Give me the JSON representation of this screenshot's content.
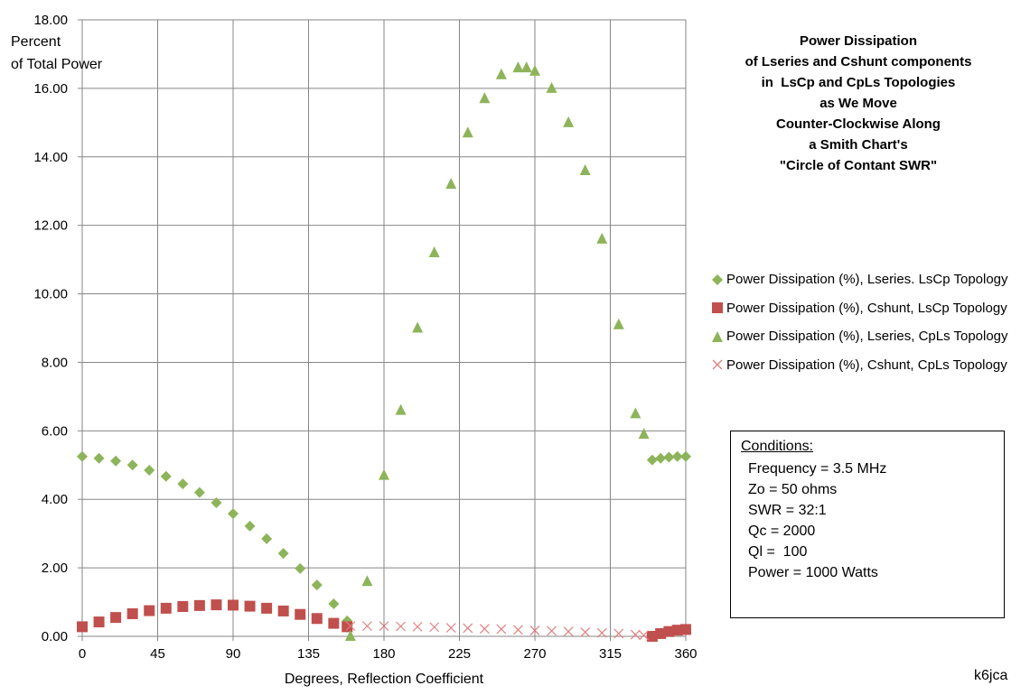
{
  "chart_data": {
    "type": "scatter",
    "title": [
      "Power Dissipation",
      "of Lseries and Cshunt components",
      "in  LsCp and CpLs Topologies",
      "as We Move",
      "Counter-Clockwise Along",
      "a Smith Chart's",
      "\"Circle of Contant SWR\""
    ],
    "xlabel": "Degrees, Reflection  Coefficient",
    "ylabel": [
      "Percent",
      "of Total Power"
    ],
    "xlim": [
      0,
      360
    ],
    "ylim": [
      0,
      18
    ],
    "x_ticks": [
      "0",
      "45",
      "90",
      "135",
      "180",
      "225",
      "270",
      "315",
      "360"
    ],
    "y_ticks": [
      "0.00",
      "2.00",
      "4.00",
      "6.00",
      "8.00",
      "10.00",
      "12.00",
      "14.00",
      "16.00",
      "18.00"
    ],
    "grid": true,
    "legend_position": "right",
    "series": [
      {
        "name": "Power Dissipation (%), Lseries. LsCp Topology",
        "marker": "diamond",
        "color": "#8DB45A",
        "x": [
          0,
          10,
          20,
          30,
          40,
          50,
          60,
          70,
          80,
          90,
          100,
          110,
          120,
          130,
          140,
          150,
          158,
          340,
          345,
          350,
          355,
          360
        ],
        "y": [
          5.25,
          5.2,
          5.12,
          5.0,
          4.85,
          4.67,
          4.45,
          4.2,
          3.9,
          3.58,
          3.22,
          2.85,
          2.42,
          1.98,
          1.5,
          0.95,
          0.45,
          5.15,
          5.2,
          5.23,
          5.25,
          5.25
        ]
      },
      {
        "name": "Power Dissipation (%), Cshunt, LsCp Topology",
        "marker": "square",
        "color": "#C0504D",
        "x": [
          0,
          10,
          20,
          30,
          40,
          50,
          60,
          70,
          80,
          90,
          100,
          110,
          120,
          130,
          140,
          150,
          158,
          340,
          345,
          350,
          355,
          360
        ],
        "y": [
          0.28,
          0.42,
          0.55,
          0.66,
          0.75,
          0.82,
          0.87,
          0.9,
          0.92,
          0.91,
          0.88,
          0.82,
          0.74,
          0.64,
          0.52,
          0.38,
          0.28,
          0.0,
          0.08,
          0.14,
          0.18,
          0.2
        ]
      },
      {
        "name": "Power Dissipation (%), Lseries, CpLs Topology",
        "marker": "triangle",
        "color": "#8DB45A",
        "x": [
          160,
          170,
          180,
          190,
          200,
          210,
          220,
          230,
          240,
          250,
          260,
          265,
          270,
          280,
          290,
          300,
          310,
          320,
          330,
          335
        ],
        "y": [
          0.0,
          1.6,
          4.7,
          6.6,
          9.0,
          11.2,
          13.2,
          14.7,
          15.7,
          16.4,
          16.6,
          16.6,
          16.5,
          16.0,
          15.0,
          13.6,
          11.6,
          9.1,
          6.5,
          5.9
        ]
      },
      {
        "name": "Power Dissipation (%), Cshunt, CpLs Topology",
        "marker": "x",
        "color": "#E08080",
        "x": [
          160,
          170,
          180,
          190,
          200,
          210,
          220,
          230,
          240,
          250,
          260,
          270,
          280,
          290,
          300,
          310,
          320,
          330,
          335
        ],
        "y": [
          0.3,
          0.3,
          0.3,
          0.29,
          0.28,
          0.27,
          0.25,
          0.24,
          0.22,
          0.21,
          0.19,
          0.17,
          0.16,
          0.14,
          0.12,
          0.1,
          0.08,
          0.05,
          0.03
        ]
      }
    ]
  },
  "conditions": {
    "title": "Conditions:",
    "items": [
      "Frequency = 3.5 MHz",
      "Zo = 50 ohms",
      "SWR = 32:1",
      "Qc = 2000",
      "Ql =  100",
      "Power = 1000 Watts"
    ]
  },
  "watermark": "k6jca"
}
